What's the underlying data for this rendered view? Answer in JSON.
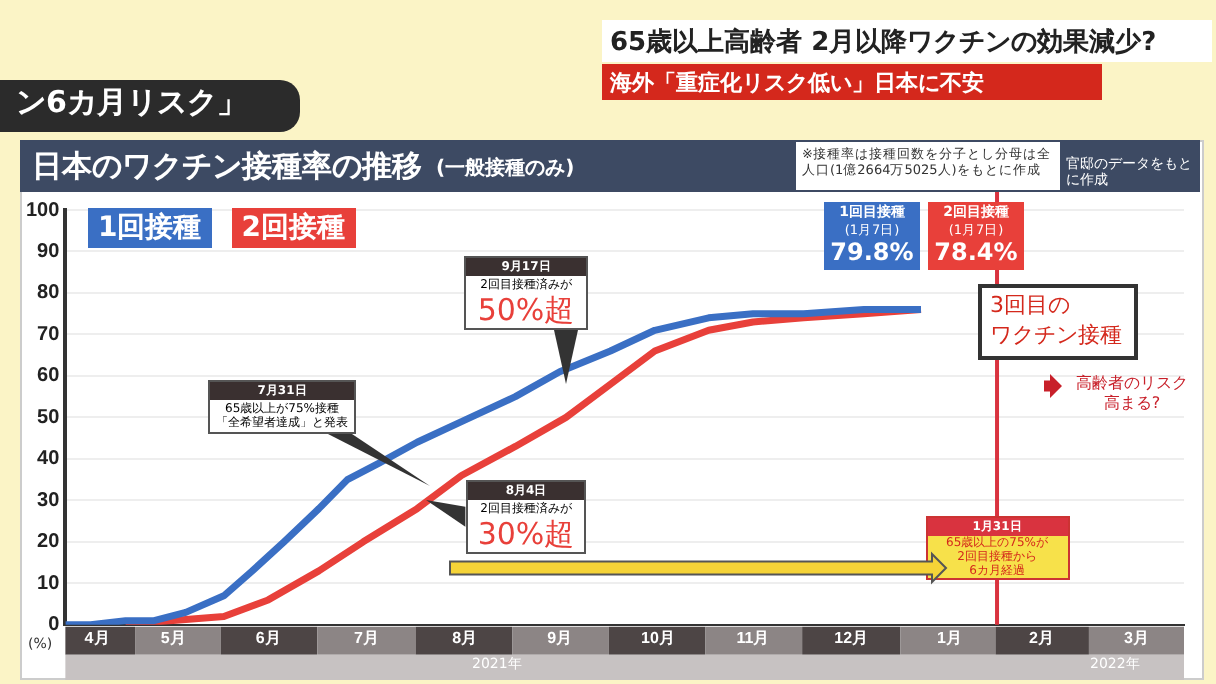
{
  "chart_data": {
    "type": "line",
    "title": "日本のワクチン接種率の推移",
    "subtitle": "(一般接種のみ)",
    "ylabel": "(%)",
    "series": [
      {
        "name": "1回接種",
        "color": "#3a6fc4",
        "x": [
          "2021-04-12",
          "2021-04-20",
          "2021-05-01",
          "2021-05-10",
          "2021-05-20",
          "2021-06-01",
          "2021-06-10",
          "2021-06-20",
          "2021-07-01",
          "2021-07-10",
          "2021-07-20",
          "2021-08-01",
          "2021-08-15",
          "2021-09-01",
          "2021-09-15",
          "2021-10-01",
          "2021-10-15",
          "2021-11-01",
          "2021-11-15",
          "2021-12-01",
          "2021-12-20",
          "2022-01-07"
        ],
        "values": [
          0,
          0,
          1,
          1,
          3,
          7,
          13,
          20,
          28,
          35,
          39,
          44,
          49,
          55,
          61,
          66,
          71,
          74,
          75,
          75,
          76,
          76
        ]
      },
      {
        "name": "2回接種",
        "color": "#e8403a",
        "x": [
          "2021-05-01",
          "2021-05-15",
          "2021-06-01",
          "2021-06-15",
          "2021-07-01",
          "2021-07-15",
          "2021-08-01",
          "2021-08-15",
          "2021-09-01",
          "2021-09-17",
          "2021-10-01",
          "2021-10-15",
          "2021-11-01",
          "2021-11-15",
          "2021-12-01",
          "2021-12-20",
          "2022-01-07"
        ],
        "values": [
          0,
          1,
          2,
          6,
          13,
          20,
          28,
          36,
          43,
          50,
          58,
          66,
          71,
          73,
          74,
          75,
          76
        ]
      }
    ],
    "xlim": [
      "2021-04-12",
      "2022-03-31"
    ],
    "xticks": [
      {
        "value": "2021-04-22",
        "label": "4月"
      },
      {
        "value": "2021-05-16",
        "label": "5月"
      },
      {
        "value": "2021-06-15",
        "label": "6月"
      },
      {
        "value": "2021-07-16",
        "label": "7月"
      },
      {
        "value": "2021-08-16",
        "label": "8月"
      },
      {
        "value": "2021-09-15",
        "label": "9月"
      },
      {
        "value": "2021-10-16",
        "label": "10月"
      },
      {
        "value": "2021-11-15",
        "label": "11月"
      },
      {
        "value": "2021-12-16",
        "label": "12月"
      },
      {
        "value": "2022-01-16",
        "label": "1月"
      },
      {
        "value": "2022-02-14",
        "label": "2月"
      },
      {
        "value": "2022-03-16",
        "label": "3月"
      }
    ],
    "ylim": [
      0,
      100
    ],
    "yticks": [
      0,
      10,
      20,
      30,
      40,
      50,
      60,
      70,
      80,
      90,
      100
    ],
    "grid": "y",
    "legend": "top left",
    "marker": "none",
    "line_style": "solid",
    "ref_lines": [
      {
        "axis": "x",
        "value": "2022-01-31",
        "label": "1月31日\n65歳以上の75%が\n2回目接種から\n6カ月経過",
        "color": "#d9333f"
      }
    ],
    "annotations": [
      "ン6カ月リスク」",
      "65歳以上高齢者 2月以降ワクチンの効果減少?",
      "海外「重症化リスク低い」日本に不安",
      "※接種率は接種回数を分子とし分母は全人口(1億2664万5025人)をもとに作成",
      "官邸のデータをもとに作成",
      "7月31日\n65歳以上が75%接種「全希望者達成」と発表",
      {
        "text": "8月4日\n2回目接種済みが\n30%超",
        "x": "2021-08-04",
        "y": 30
      },
      "9月17日\n2回目接種済みが\n50%超",
      "1回目接種\n(1月7日)\n79.8%",
      "2回目接種\n(1月7日)\n78.4%",
      "3回目の",
      "ワクチン接種",
      "高齢者のリスク高まる?",
      "2021年",
      "2022年"
    ]
  }
}
